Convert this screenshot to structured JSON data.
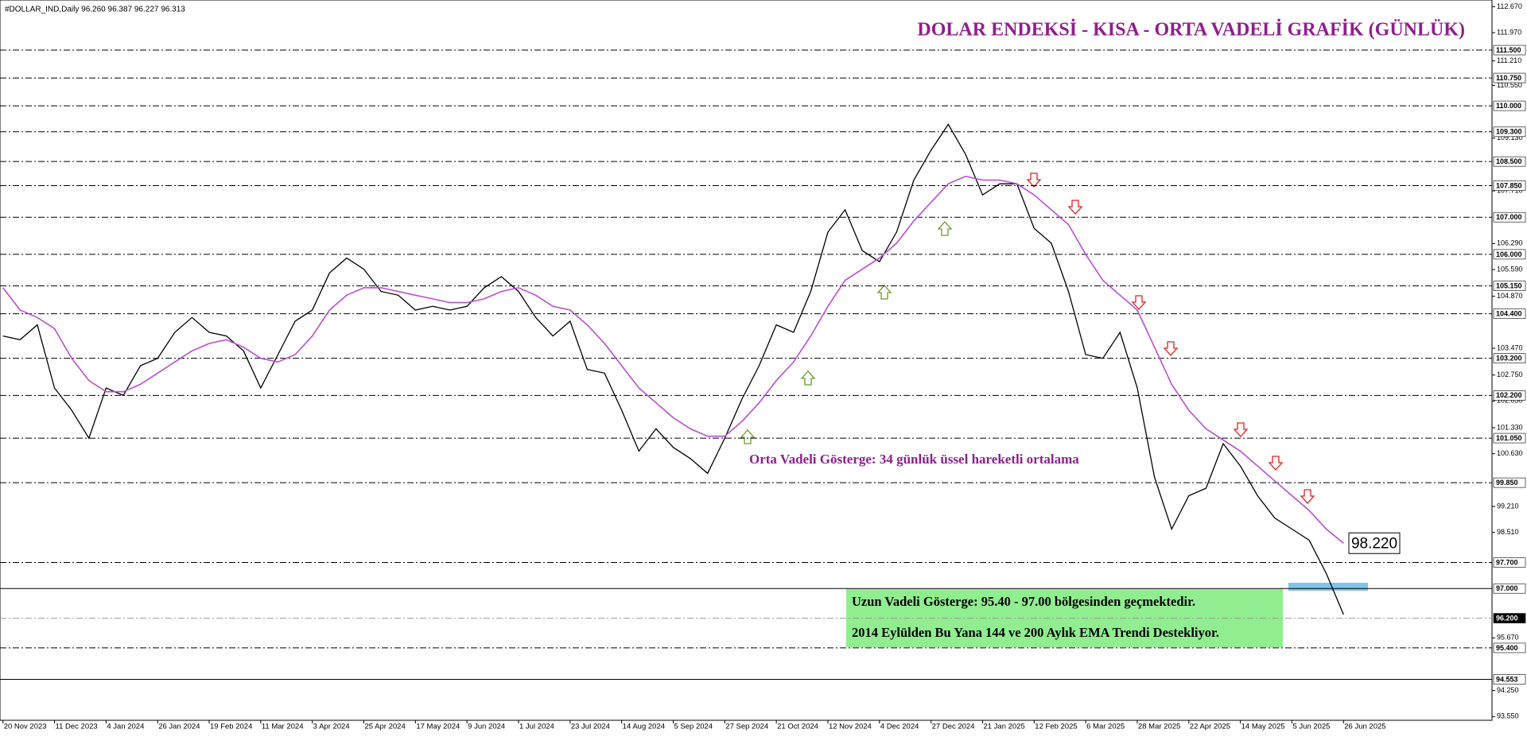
{
  "chart_data": {
    "type": "line",
    "info": "#DOLLAR_IND,Daily  96.260 96.387 96.227 96.313",
    "title": "DOLAR ENDEKSİ - KISA - ORTA VADELİ GRAFİK (GÜNLÜK)",
    "annotation": "Orta Vadeli Gösterge: 34 günlük üssel hareketli ortalama",
    "box_lines": [
      "Uzun Vadeli Gösterge: 95.40 - 97.00 bölgesinden geçmektedir.",
      "2014 Eylülden Bu Yana 144 ve 200 Aylık EMA Trendi Destekliyor."
    ],
    "last_value_label": "98.220",
    "categories": [
      "20 Nov 2023",
      null,
      null,
      "11 Dec 2023",
      null,
      null,
      "4 Jan 2024",
      null,
      null,
      "26 Jan 2024",
      null,
      null,
      "19 Feb 2024",
      null,
      null,
      "11 Mar 2024",
      null,
      null,
      "3 Apr 2024",
      null,
      null,
      "25 Apr 2024",
      null,
      null,
      "17 May 2024",
      null,
      null,
      "9 Jun 2024",
      null,
      null,
      "1 Jul 2024",
      null,
      null,
      "23 Jul 2024",
      null,
      null,
      "14 Aug 2024",
      null,
      null,
      "5 Sep 2024",
      null,
      null,
      "27 Sep 2024",
      null,
      null,
      "21 Oct 2024",
      null,
      null,
      "12 Nov 2024",
      null,
      null,
      "4 Dec 2024",
      null,
      null,
      "27 Dec 2024",
      null,
      null,
      "21 Jan 2025",
      null,
      null,
      "12 Feb 2025",
      null,
      null,
      "6 Mar 2025",
      null,
      null,
      "28 Mar 2025",
      null,
      null,
      "22 Apr 2025",
      null,
      null,
      "14 May 2025",
      null,
      null,
      "5 Jun 2025",
      null,
      null,
      "26 Jun 2025"
    ],
    "series": [
      {
        "name": "#DOLLAR_IND",
        "color": "#000000",
        "values": [
          103.8,
          103.7,
          104.1,
          102.4,
          101.8,
          101.05,
          102.4,
          102.2,
          103.0,
          103.2,
          103.9,
          104.3,
          103.9,
          103.8,
          103.4,
          102.4,
          103.3,
          104.2,
          104.5,
          105.5,
          105.9,
          105.6,
          105.0,
          104.9,
          104.5,
          104.6,
          104.5,
          104.6,
          105.1,
          105.4,
          105.0,
          104.3,
          103.8,
          104.2,
          102.9,
          102.8,
          101.8,
          100.7,
          101.3,
          100.8,
          100.5,
          100.1,
          101.05,
          102.1,
          103.0,
          104.1,
          103.9,
          105.0,
          106.6,
          107.2,
          106.1,
          105.8,
          106.6,
          108.0,
          108.8,
          109.5,
          108.7,
          107.6,
          107.9,
          107.9,
          106.7,
          106.3,
          105.0,
          103.3,
          103.2,
          103.9,
          102.4,
          100.0,
          98.6,
          99.5,
          99.7,
          100.9,
          100.3,
          99.5,
          98.9,
          98.6,
          98.3,
          97.4,
          96.3
        ]
      },
      {
        "name": "EMA 34",
        "color": "#b84fd0",
        "values": [
          105.1,
          104.5,
          104.3,
          104.0,
          103.2,
          102.6,
          102.3,
          102.3,
          102.5,
          102.8,
          103.1,
          103.4,
          103.6,
          103.7,
          103.5,
          103.2,
          103.1,
          103.3,
          103.8,
          104.5,
          104.9,
          105.1,
          105.1,
          105.0,
          104.9,
          104.8,
          104.7,
          104.7,
          104.8,
          105.0,
          105.1,
          104.9,
          104.6,
          104.5,
          104.1,
          103.6,
          103.0,
          102.4,
          102.0,
          101.6,
          101.3,
          101.1,
          101.1,
          101.5,
          102.0,
          102.6,
          103.1,
          103.8,
          104.6,
          105.3,
          105.6,
          105.9,
          106.3,
          106.9,
          107.4,
          107.9,
          108.1,
          108.0,
          108.0,
          107.9,
          107.6,
          107.2,
          106.8,
          106.0,
          105.3,
          104.9,
          104.5,
          103.5,
          102.5,
          101.8,
          101.3,
          101.0,
          100.7,
          100.3,
          99.9,
          99.5,
          99.1,
          98.6,
          98.22
        ]
      }
    ],
    "ylim": [
      93.45,
      112.85
    ],
    "yticks": [
      {
        "value": 112.67,
        "label": "112.670"
      },
      {
        "value": 111.97,
        "label": "111.970"
      },
      {
        "value": 111.21,
        "label": "111.210"
      },
      {
        "value": 110.55,
        "label": "110.550"
      },
      {
        "value": 109.13,
        "label": "109.130"
      },
      {
        "value": 107.71,
        "label": "107.710"
      },
      {
        "value": 106.29,
        "label": "106.290"
      },
      {
        "value": 105.59,
        "label": "105.590"
      },
      {
        "value": 104.87,
        "label": "104.870"
      },
      {
        "value": 103.47,
        "label": "103.470"
      },
      {
        "value": 102.75,
        "label": "102.750"
      },
      {
        "value": 102.05,
        "label": "102.050"
      },
      {
        "value": 101.33,
        "label": "101.330"
      },
      {
        "value": 100.63,
        "label": "100.630"
      },
      {
        "value": 99.21,
        "label": "99.210"
      },
      {
        "value": 98.51,
        "label": "98.510"
      },
      {
        "value": 95.67,
        "label": "95.670"
      },
      {
        "value": 94.25,
        "label": "94.250"
      },
      {
        "value": 93.55,
        "label": "93.550"
      }
    ],
    "levels": [
      {
        "value": 111.5,
        "label": "111.500",
        "style": "dashed"
      },
      {
        "value": 110.75,
        "label": "110.750",
        "style": "dashed"
      },
      {
        "value": 110,
        "label": "110.000",
        "style": "dashed"
      },
      {
        "value": 109.3,
        "label": "109.300",
        "style": "dashed"
      },
      {
        "value": 108.5,
        "label": "108.500",
        "style": "dashed"
      },
      {
        "value": 107.85,
        "label": "107.850",
        "style": "dashed"
      },
      {
        "value": 107,
        "label": "107.000",
        "style": "dashed"
      },
      {
        "value": 106,
        "label": "106.000",
        "style": "dashed"
      },
      {
        "value": 105.15,
        "label": "105.150",
        "style": "dashed"
      },
      {
        "value": 104.4,
        "label": "104.400",
        "style": "dashed"
      },
      {
        "value": 103.2,
        "label": "103.200",
        "style": "dashed"
      },
      {
        "value": 102.2,
        "label": "102.200",
        "style": "dashed"
      },
      {
        "value": 101.05,
        "label": "101.050",
        "style": "dashed"
      },
      {
        "value": 99.85,
        "label": "99.850",
        "style": "dashed"
      },
      {
        "value": 97.7,
        "label": "97.700",
        "style": "dashed"
      },
      {
        "value": 97,
        "label": "97.000",
        "style": "solid"
      },
      {
        "value": 96.2,
        "label": "96.200",
        "style": "current"
      },
      {
        "value": 95.4,
        "label": "95.400",
        "style": "dashed"
      },
      {
        "value": 94.553,
        "label": "94.553",
        "style": "solid"
      }
    ]
  }
}
